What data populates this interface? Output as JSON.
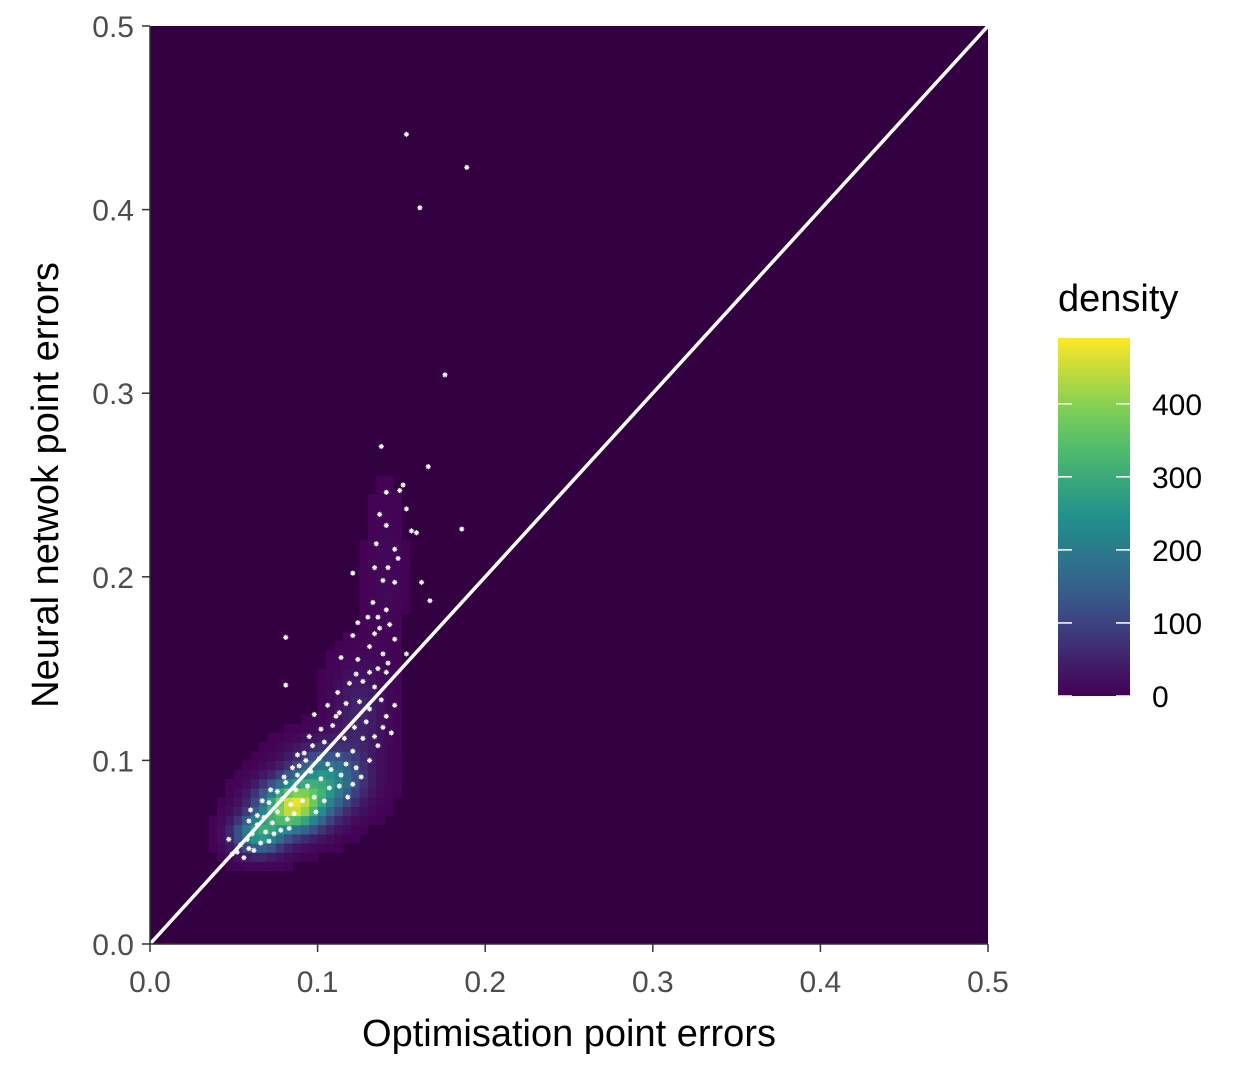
{
  "chart_data": {
    "type": "heatmap",
    "title": "",
    "xlabel": "Optimisation point errors",
    "ylabel": "Neural netwok point errors",
    "xlim": [
      0,
      0.5
    ],
    "ylim": [
      0,
      0.5
    ],
    "x_ticks": [
      "0.0",
      "0.1",
      "0.2",
      "0.3",
      "0.4",
      "0.5"
    ],
    "y_ticks": [
      "0.0",
      "0.1",
      "0.2",
      "0.3",
      "0.4",
      "0.5"
    ],
    "grid": false,
    "reference_line": {
      "type": "identity",
      "from": [
        0,
        0
      ],
      "to": [
        0.5,
        0.5
      ],
      "color": "#ffffff"
    },
    "colors": {
      "background": "#330042",
      "points": "#ffffff",
      "viridis": [
        "#440154",
        "#3b528b",
        "#21918c",
        "#5ec962",
        "#fde725"
      ]
    },
    "legend": {
      "title": "density",
      "placement": "right",
      "range": [
        0,
        490
      ],
      "ticks": [
        {
          "value": 0,
          "label": "0"
        },
        {
          "value": 100,
          "label": "100"
        },
        {
          "value": 200,
          "label": "200"
        },
        {
          "value": 300,
          "label": "300"
        },
        {
          "value": 400,
          "label": "400"
        }
      ]
    },
    "density_peaks": [
      {
        "x": 0.085,
        "y": 0.075,
        "sx": 0.013,
        "sy": 0.009,
        "weight": 440
      },
      {
        "x": 0.065,
        "y": 0.06,
        "sx": 0.01,
        "sy": 0.007,
        "weight": 260
      },
      {
        "x": 0.105,
        "y": 0.09,
        "sx": 0.014,
        "sy": 0.011,
        "weight": 240
      },
      {
        "x": 0.125,
        "y": 0.125,
        "sx": 0.01,
        "sy": 0.018,
        "weight": 55
      },
      {
        "x": 0.14,
        "y": 0.2,
        "sx": 0.007,
        "sy": 0.03,
        "weight": 12
      }
    ],
    "points": [
      [
        0.153,
        0.441
      ],
      [
        0.189,
        0.423
      ],
      [
        0.161,
        0.401
      ],
      [
        0.176,
        0.31
      ],
      [
        0.138,
        0.271
      ],
      [
        0.166,
        0.26
      ],
      [
        0.151,
        0.25
      ],
      [
        0.141,
        0.246
      ],
      [
        0.149,
        0.247
      ],
      [
        0.153,
        0.237
      ],
      [
        0.137,
        0.234
      ],
      [
        0.141,
        0.228
      ],
      [
        0.156,
        0.225
      ],
      [
        0.159,
        0.224
      ],
      [
        0.186,
        0.226
      ],
      [
        0.135,
        0.218
      ],
      [
        0.146,
        0.215
      ],
      [
        0.148,
        0.21
      ],
      [
        0.142,
        0.205
      ],
      [
        0.121,
        0.202
      ],
      [
        0.134,
        0.205
      ],
      [
        0.139,
        0.198
      ],
      [
        0.146,
        0.197
      ],
      [
        0.162,
        0.197
      ],
      [
        0.167,
        0.187
      ],
      [
        0.133,
        0.186
      ],
      [
        0.141,
        0.182
      ],
      [
        0.136,
        0.178
      ],
      [
        0.143,
        0.174
      ],
      [
        0.137,
        0.172
      ],
      [
        0.124,
        0.175
      ],
      [
        0.13,
        0.178
      ],
      [
        0.121,
        0.168
      ],
      [
        0.081,
        0.167
      ],
      [
        0.134,
        0.169
      ],
      [
        0.146,
        0.166
      ],
      [
        0.139,
        0.158
      ],
      [
        0.153,
        0.158
      ],
      [
        0.142,
        0.153
      ],
      [
        0.114,
        0.156
      ],
      [
        0.123,
        0.147
      ],
      [
        0.131,
        0.148
      ],
      [
        0.136,
        0.15
      ],
      [
        0.141,
        0.148
      ],
      [
        0.119,
        0.142
      ],
      [
        0.127,
        0.143
      ],
      [
        0.081,
        0.141
      ],
      [
        0.134,
        0.14
      ],
      [
        0.112,
        0.137
      ],
      [
        0.117,
        0.131
      ],
      [
        0.125,
        0.132
      ],
      [
        0.131,
        0.128
      ],
      [
        0.138,
        0.133
      ],
      [
        0.129,
        0.121
      ],
      [
        0.122,
        0.118
      ],
      [
        0.139,
        0.118
      ],
      [
        0.144,
        0.115
      ],
      [
        0.134,
        0.113
      ],
      [
        0.111,
        0.124
      ],
      [
        0.098,
        0.125
      ],
      [
        0.109,
        0.119
      ],
      [
        0.116,
        0.112
      ],
      [
        0.104,
        0.11
      ],
      [
        0.097,
        0.108
      ],
      [
        0.136,
        0.108
      ],
      [
        0.112,
        0.103
      ],
      [
        0.092,
        0.104
      ],
      [
        0.101,
        0.101
      ],
      [
        0.117,
        0.098
      ],
      [
        0.123,
        0.096
      ],
      [
        0.108,
        0.095
      ],
      [
        0.114,
        0.092
      ],
      [
        0.126,
        0.091
      ],
      [
        0.096,
        0.094
      ],
      [
        0.089,
        0.097
      ],
      [
        0.102,
        0.09
      ],
      [
        0.081,
        0.088
      ],
      [
        0.094,
        0.086
      ],
      [
        0.087,
        0.084
      ],
      [
        0.107,
        0.085
      ],
      [
        0.113,
        0.086
      ],
      [
        0.076,
        0.083
      ],
      [
        0.079,
        0.079
      ],
      [
        0.091,
        0.078
      ],
      [
        0.084,
        0.076
      ],
      [
        0.098,
        0.08
      ],
      [
        0.071,
        0.077
      ],
      [
        0.086,
        0.071
      ],
      [
        0.076,
        0.072
      ],
      [
        0.068,
        0.069
      ],
      [
        0.073,
        0.066
      ],
      [
        0.082,
        0.068
      ],
      [
        0.064,
        0.065
      ],
      [
        0.069,
        0.061
      ],
      [
        0.061,
        0.06
      ],
      [
        0.074,
        0.06
      ],
      [
        0.058,
        0.057
      ],
      [
        0.066,
        0.055
      ],
      [
        0.054,
        0.054
      ],
      [
        0.059,
        0.052
      ],
      [
        0.052,
        0.05
      ],
      [
        0.049,
        0.049
      ],
      [
        0.056,
        0.047
      ],
      [
        0.062,
        0.051
      ],
      [
        0.047,
        0.057
      ],
      [
        0.071,
        0.056
      ],
      [
        0.078,
        0.062
      ],
      [
        0.083,
        0.063
      ],
      [
        0.064,
        0.07
      ],
      [
        0.06,
        0.073
      ],
      [
        0.059,
        0.067
      ],
      [
        0.067,
        0.078
      ],
      [
        0.072,
        0.084
      ],
      [
        0.08,
        0.091
      ],
      [
        0.088,
        0.092
      ],
      [
        0.093,
        0.1
      ],
      [
        0.088,
        0.103
      ],
      [
        0.085,
        0.096
      ],
      [
        0.099,
        0.072
      ],
      [
        0.104,
        0.078
      ],
      [
        0.118,
        0.08
      ],
      [
        0.121,
        0.087
      ],
      [
        0.106,
        0.098
      ],
      [
        0.095,
        0.113
      ],
      [
        0.102,
        0.117
      ],
      [
        0.121,
        0.105
      ],
      [
        0.127,
        0.112
      ],
      [
        0.113,
        0.126
      ],
      [
        0.106,
        0.13
      ],
      [
        0.131,
        0.1
      ],
      [
        0.141,
        0.124
      ],
      [
        0.146,
        0.13
      ],
      [
        0.124,
        0.155
      ],
      [
        0.131,
        0.162
      ]
    ]
  }
}
